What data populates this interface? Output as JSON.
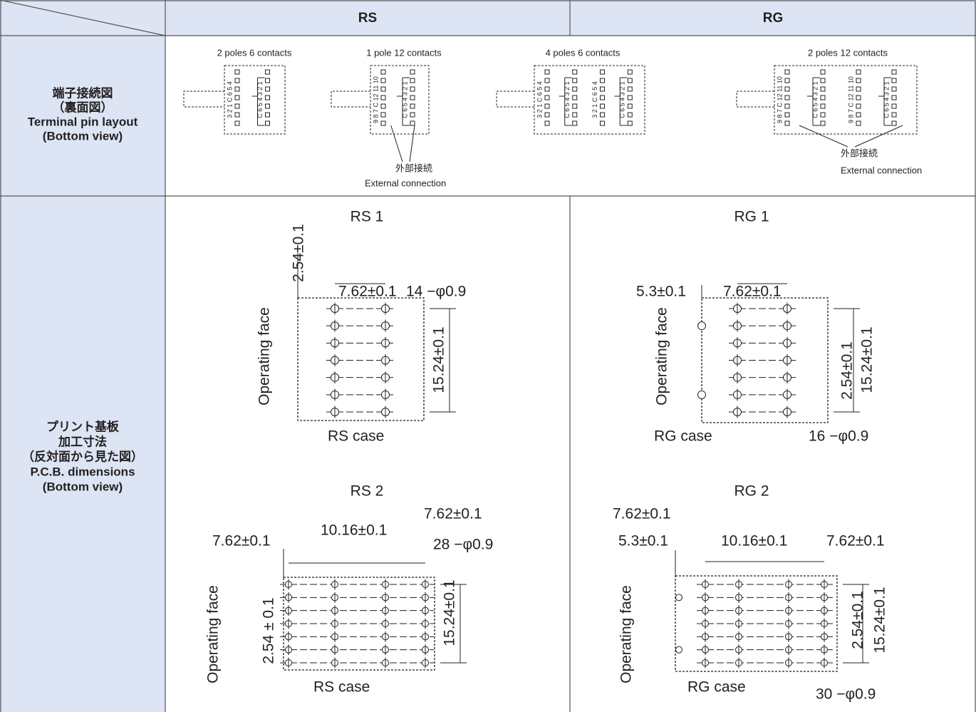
{
  "header": {
    "rs": "RS",
    "rg": "RG"
  },
  "terminal": {
    "label": [
      "端子接続図",
      "（裏面図）",
      "Terminal pin layout",
      "(Bottom view)"
    ],
    "diagrams": [
      {
        "title": "2 poles 6 contacts",
        "pins": [
          "3 2 1 C 6 5 4",
          "C 6 5 4 3 2 1"
        ]
      },
      {
        "title": "1 pole 12 contacts",
        "pins": [
          "9 8 7 C 12 11 10",
          "C 6 5 4 3 2 1"
        ],
        "note": [
          "外部接続",
          "External connection"
        ]
      },
      {
        "title": "4 poles 6 contacts",
        "pins": [
          "3 2 1 C 6 5 4",
          "C 6 5 4 3 2 1",
          "3 2 1 C 6 5 4",
          "C 6 5 4 3 2 1"
        ]
      },
      {
        "title": "2 poles 12 contacts",
        "pins": [
          "9 8 7 C 12 11 10",
          "C 6 5 4 3 2 1",
          "9 8 7 C 12 11 10",
          "C 6 5 4 3 2 1"
        ],
        "note": [
          "外部接続",
          "External connection"
        ]
      }
    ]
  },
  "pcb": {
    "label": [
      "プリント基板",
      "加工寸法",
      "（反対面から見た図）",
      "P.C.B. dimensions",
      "(Bottom view)"
    ],
    "drawings": [
      {
        "title": "RS 1",
        "texts": [
          "2.54±0.1",
          "7.62±0.1",
          "14 −φ0.9",
          "15.24±0.1",
          "Operating face",
          "RS case"
        ]
      },
      {
        "title": "RG 1",
        "texts": [
          "5.3±0.1",
          "7.62±0.1",
          "2.54±0.1",
          "15.24±0.1",
          "Operating face",
          "RG case",
          "16 −φ0.9"
        ]
      },
      {
        "title": "RS 2",
        "texts": [
          "7.62±0.1",
          "10.16±0.1",
          "7.62±0.1",
          "28 −φ0.9",
          "15.24±0.1",
          "2.54 ± 0.1",
          "Operating face",
          "RS case"
        ]
      },
      {
        "title": "RG 2",
        "texts": [
          "7.62±0.1",
          "5.3±0.1",
          "10.16±0.1",
          "7.62±0.1",
          "2.54±0.1",
          "15.24±0.1",
          "Operating face",
          "RG case",
          "30 −φ0.9"
        ]
      }
    ]
  }
}
